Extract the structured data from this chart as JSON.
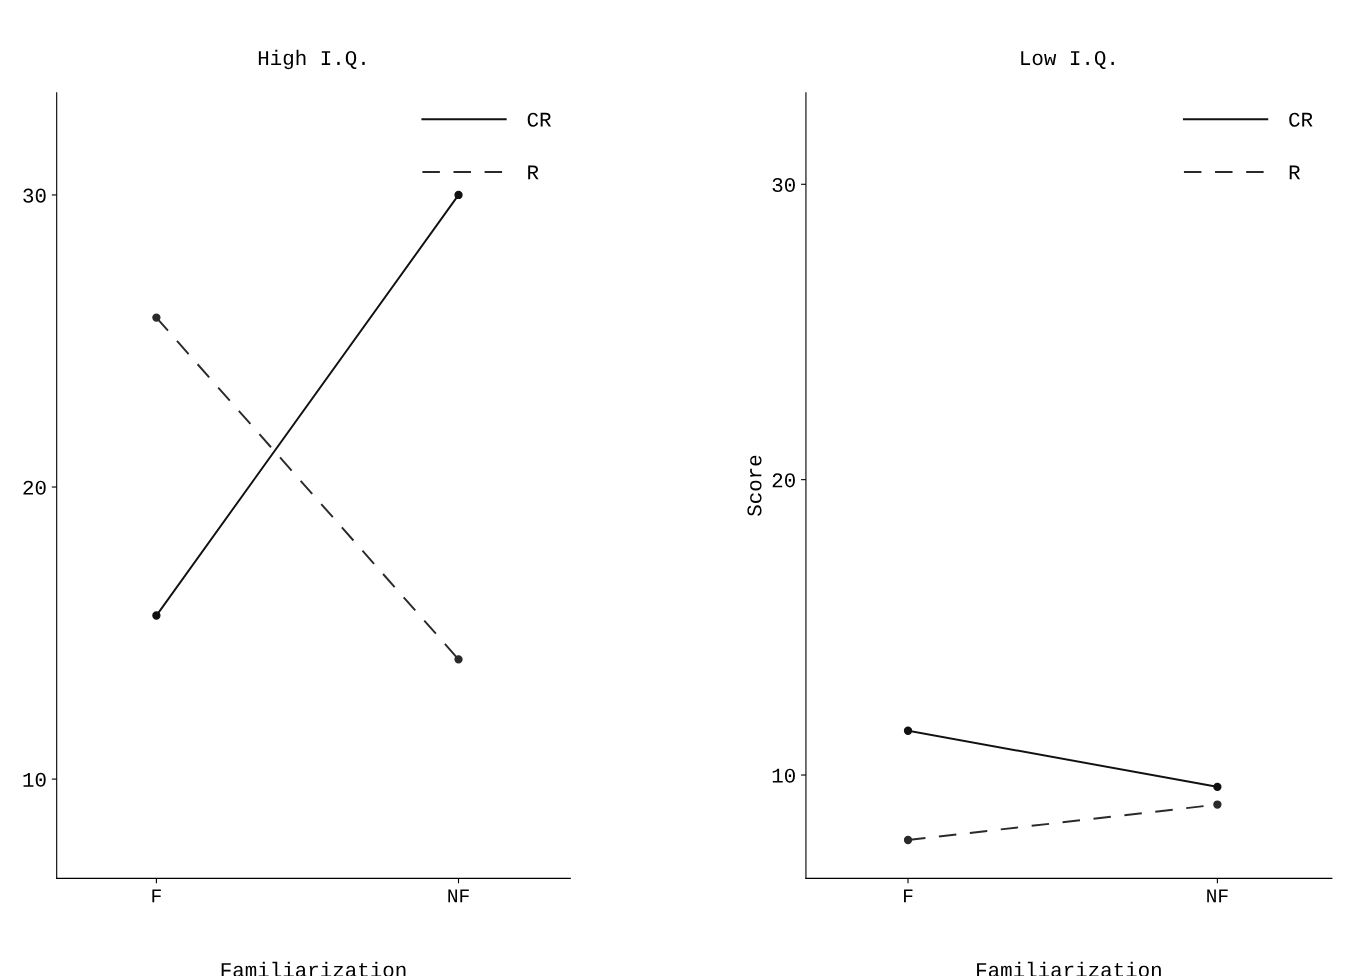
{
  "chart_data": [
    {
      "type": "line",
      "title": "High I.Q.",
      "xlabel": "Familiarization",
      "categories": [
        "F",
        "NF"
      ],
      "ylim": [
        6.6,
        33.5
      ],
      "yticks": [
        10,
        20,
        30
      ],
      "grid": false,
      "legend": "top right",
      "marker": "circle",
      "series": [
        {
          "name": "CR",
          "color": "#111111",
          "values": [
            15.6,
            30
          ],
          "line_style": "solid"
        },
        {
          "name": "R",
          "color": "#2a2a2a",
          "values": [
            25.8,
            14.1
          ],
          "line_style": "dashed"
        }
      ]
    },
    {
      "type": "line",
      "title": "Low I.Q.",
      "xlabel": "Familiarization",
      "ylabel": "Score",
      "categories": [
        "F",
        "NF"
      ],
      "ylim": [
        6.5,
        33.1
      ],
      "yticks": [
        10,
        20,
        30
      ],
      "grid": false,
      "legend": "top right",
      "marker": "circle",
      "series": [
        {
          "name": "CR",
          "color": "#111111",
          "values": [
            11.5,
            9.6
          ],
          "line_style": "solid"
        },
        {
          "name": "R",
          "color": "#2a2a2a",
          "values": [
            7.8,
            9.0
          ],
          "line_style": "dashed"
        }
      ]
    }
  ]
}
